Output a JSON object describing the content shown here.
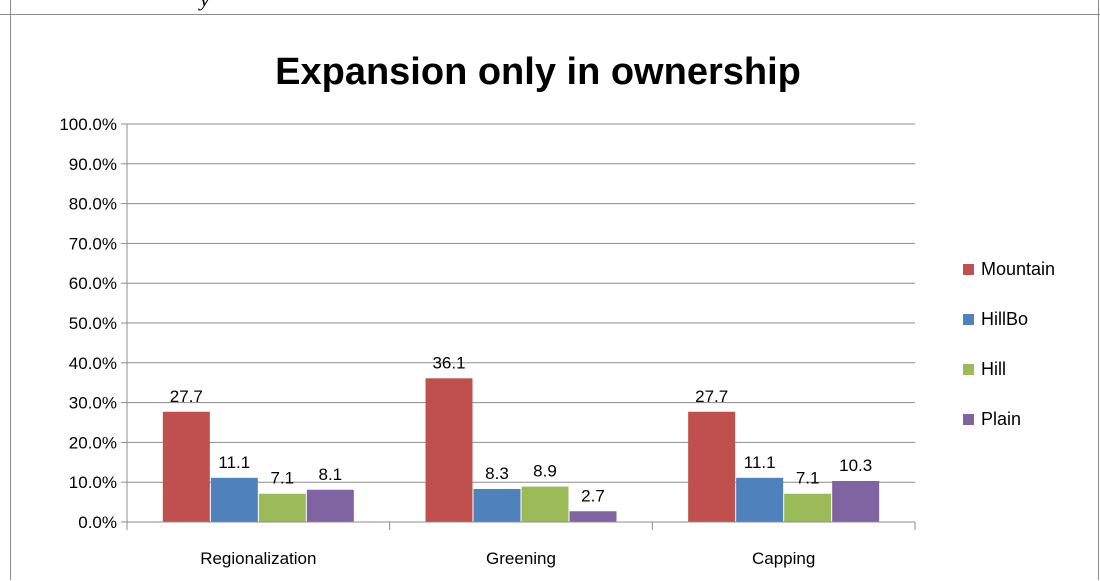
{
  "page": {
    "stray_text": "y"
  },
  "chart_data": {
    "type": "bar",
    "title": "Expansion only in ownership",
    "xlabel": "",
    "ylabel": "",
    "categories": [
      "Regionalization",
      "Greening",
      "Capping"
    ],
    "series": [
      {
        "name": "Mountain",
        "values": [
          27.7,
          36.1,
          27.7
        ],
        "labels": [
          "27.7",
          "36.1",
          "27.7"
        ],
        "color": "#c0504d"
      },
      {
        "name": "HillBo",
        "values": [
          11.1,
          8.3,
          11.1
        ],
        "labels": [
          "11.1",
          "8.3",
          "11.1"
        ],
        "color": "#4f81bd"
      },
      {
        "name": "Hill",
        "values": [
          7.1,
          8.9,
          7.1
        ],
        "labels": [
          "7.1",
          "8.9",
          "7.1"
        ],
        "color": "#9bbb59"
      },
      {
        "name": "Plain",
        "values": [
          8.1,
          2.7,
          10.3
        ],
        "labels": [
          "8.1",
          "2.7",
          "10.3"
        ],
        "color": "#8064a2"
      }
    ],
    "ylim": [
      0,
      100
    ],
    "ytick_labels": [
      "0.0%",
      "10.0%",
      "20.0%",
      "30.0%",
      "40.0%",
      "50.0%",
      "60.0%",
      "70.0%",
      "80.0%",
      "90.0%",
      "100.0%"
    ],
    "grid": true,
    "legend": "right"
  }
}
